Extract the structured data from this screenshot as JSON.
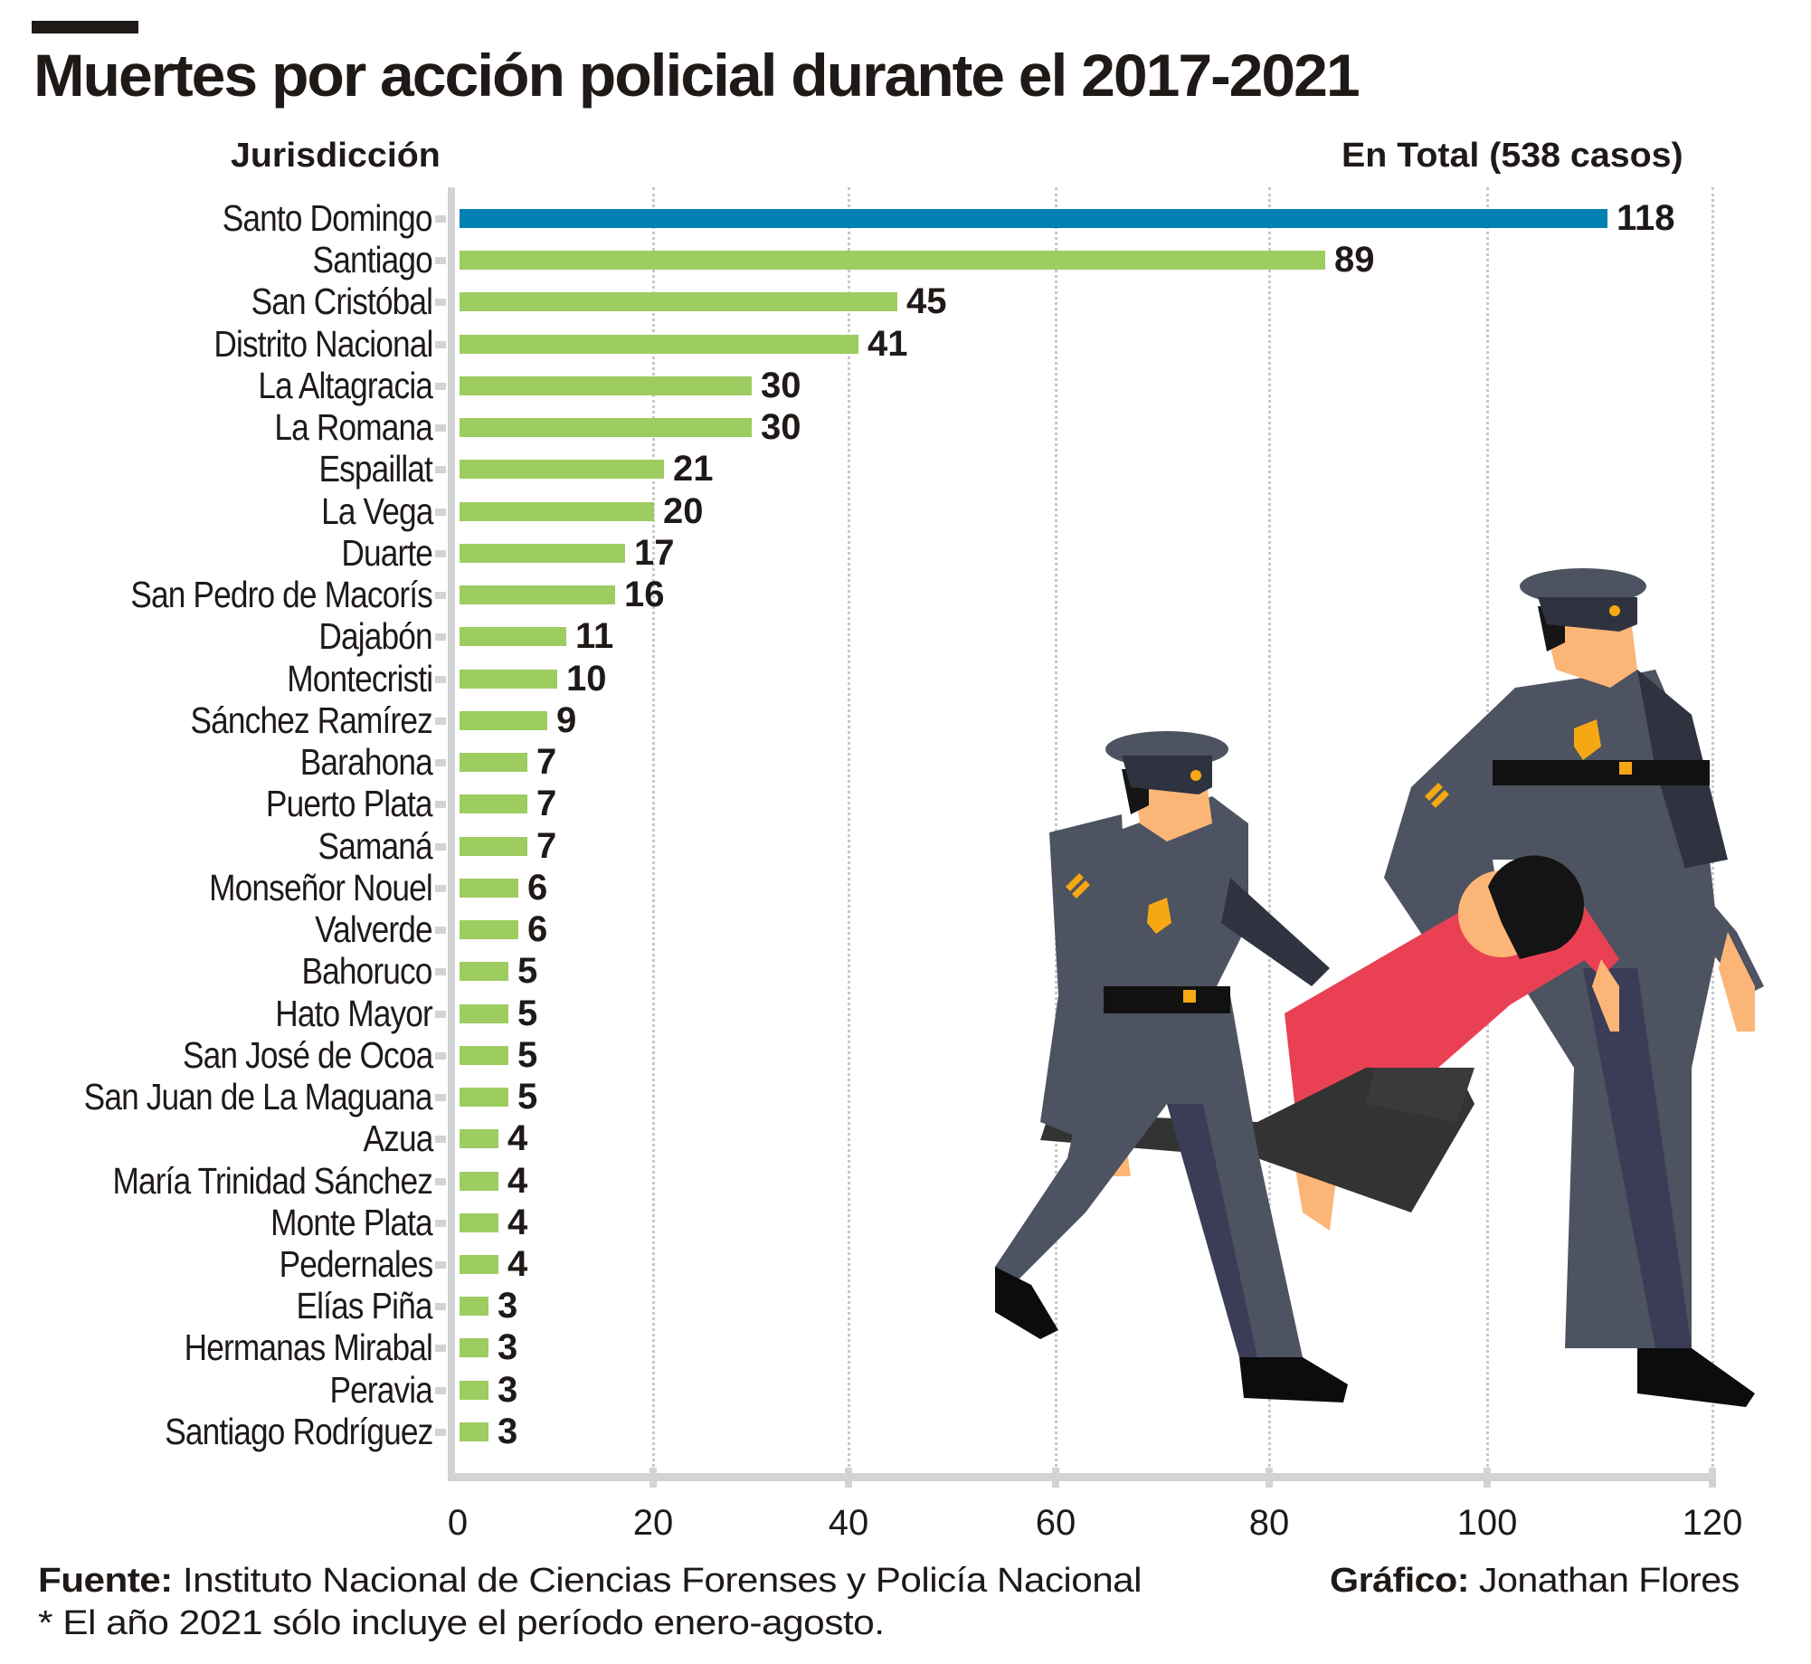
{
  "header": {
    "title": "Muertes por acción policial durante el 2017-2021",
    "y_column_header": "Jurisdicción",
    "total_header": "En Total (538 casos)"
  },
  "footer": {
    "source_label": "Fuente:",
    "source_text": " Instituto Nacional de Ciencias Forenses y Policía Nacional",
    "note": "* El año 2021 sólo incluye el período enero-agosto.",
    "credit_label": "Gráfico:",
    "credit_text": " Jonathan Flores"
  },
  "colors": {
    "highlight_bar": "#0081b4",
    "bar": "#9dcc61",
    "axis": "#d1d3d4",
    "text": "#1f1a17"
  },
  "illustration": {
    "description": "Two police officers carrying a limp man in a red shirt"
  },
  "chart_data": {
    "type": "bar",
    "orientation": "horizontal",
    "title": "Muertes por acción policial durante el 2017-2021",
    "subtitle": "En Total (538 casos)",
    "xlabel": "",
    "ylabel": "Jurisdicción",
    "xlim": [
      0,
      120
    ],
    "x_ticks": [
      0,
      20,
      40,
      60,
      80,
      100,
      120
    ],
    "x_tick_labels": [
      "0",
      "20",
      "40",
      "60",
      "80",
      "100",
      "120"
    ],
    "grid": "vertical dotted",
    "legend": "none",
    "categories": [
      "Santo Domingo",
      "Santiago",
      "San Cristóbal",
      "Distrito Nacional",
      "La Altagracia",
      "La Romana",
      "Espaillat",
      "La Vega",
      "Duarte",
      "San Pedro de Macorís",
      "Dajabón",
      "Montecristi",
      "Sánchez Ramírez",
      "Barahona",
      "Puerto Plata",
      "Samaná",
      "Monseñor Nouel",
      "Valverde",
      "Bahoruco",
      "Hato Mayor",
      "San José de Ocoa",
      "San Juan de La Maguana",
      "Azua",
      "María Trinidad Sánchez",
      "Monte Plata",
      "Pedernales",
      "Elías Piña",
      "Hermanas Mirabal",
      "Peravia",
      "Santiago Rodríguez"
    ],
    "values": [
      118,
      89,
      45,
      41,
      30,
      30,
      21,
      20,
      17,
      16,
      11,
      10,
      9,
      7,
      7,
      7,
      6,
      6,
      5,
      5,
      5,
      5,
      4,
      4,
      4,
      4,
      3,
      3,
      3,
      3
    ],
    "highlighted_category": "Santo Domingo"
  }
}
